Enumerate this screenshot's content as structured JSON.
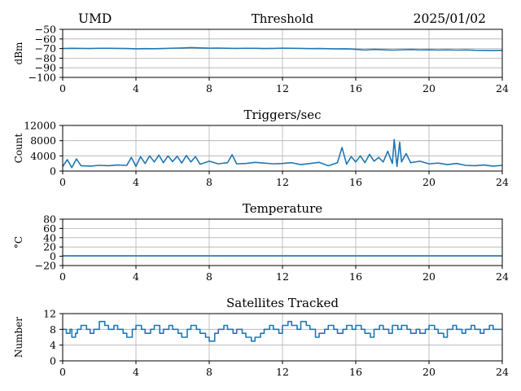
{
  "header": {
    "site": "UMD",
    "date": "2025/01/02"
  },
  "colors": {
    "line": "#1f77b4",
    "grid": "#b0b0b0",
    "axis": "#000000",
    "background": "#ffffff"
  },
  "chart_data": [
    {
      "type": "line",
      "title": "Threshold",
      "ylabel": "dBm",
      "xlabel": "",
      "xlim": [
        0,
        24
      ],
      "ylim": [
        -100,
        -50
      ],
      "x_ticks": [
        0,
        4,
        8,
        12,
        16,
        20,
        24
      ],
      "x_tick_labels": [
        "0",
        "4",
        "8",
        "12",
        "16",
        "20",
        "24"
      ],
      "y_ticks": [
        -50,
        -60,
        -70,
        -80,
        -90,
        -100
      ],
      "y_tick_labels": [
        "−50",
        "−60",
        "−70",
        "−80",
        "−90",
        "−100"
      ],
      "grid": true,
      "series": [
        {
          "x": [
            0,
            0.5,
            1,
            1.5,
            2,
            2.5,
            3,
            3.5,
            4,
            4.5,
            5,
            5.5,
            6,
            6.5,
            7,
            7.5,
            8,
            8.5,
            9,
            9.5,
            10,
            10.5,
            11,
            11.5,
            12,
            12.5,
            13,
            13.5,
            14,
            14.5,
            15,
            15.5,
            16,
            16.5,
            17,
            17.5,
            18,
            18.5,
            19,
            19.5,
            20,
            20.5,
            21,
            21.5,
            22,
            22.5,
            23,
            23.5,
            24
          ],
          "values": [
            -70,
            -69.8,
            -69.9,
            -70,
            -69.7,
            -69.8,
            -69.9,
            -70,
            -70.3,
            -70.1,
            -70.2,
            -70,
            -69.6,
            -69.4,
            -69,
            -69.3,
            -69.6,
            -69.5,
            -69.8,
            -69.9,
            -69.7,
            -69.8,
            -70,
            -69.9,
            -69.6,
            -69.8,
            -69.9,
            -70.1,
            -70,
            -70.2,
            -70.4,
            -70.3,
            -70.8,
            -71.5,
            -70.9,
            -71.2,
            -71.6,
            -71.3,
            -71,
            -71.4,
            -71.2,
            -71.5,
            -71.3,
            -71.6,
            -71.4,
            -71.8,
            -71.9,
            -72,
            -71.9
          ]
        }
      ]
    },
    {
      "type": "line",
      "title": "Triggers/sec",
      "ylabel": "Count",
      "xlabel": "",
      "xlim": [
        0,
        24
      ],
      "ylim": [
        0,
        12000
      ],
      "x_ticks": [
        0,
        4,
        8,
        12,
        16,
        20,
        24
      ],
      "x_tick_labels": [
        "0",
        "4",
        "8",
        "12",
        "16",
        "20",
        "24"
      ],
      "y_ticks": [
        0,
        4000,
        8000,
        12000
      ],
      "y_tick_labels": [
        "0",
        "4000",
        "8000",
        "12000"
      ],
      "grid": true,
      "series": [
        {
          "x": [
            0,
            0.25,
            0.5,
            0.75,
            1,
            1.5,
            2,
            2.5,
            3,
            3.5,
            3.75,
            4,
            4.25,
            4.5,
            4.75,
            5,
            5.25,
            5.5,
            5.75,
            6,
            6.25,
            6.5,
            6.75,
            7,
            7.25,
            7.5,
            8,
            8.5,
            9,
            9.25,
            9.5,
            10,
            10.5,
            11,
            11.5,
            12,
            12.5,
            13,
            13.5,
            14,
            14.5,
            15,
            15.25,
            15.5,
            15.75,
            16,
            16.25,
            16.5,
            16.75,
            17,
            17.25,
            17.5,
            17.75,
            18,
            18.1,
            18.25,
            18.4,
            18.5,
            18.75,
            19,
            19.5,
            20,
            20.5,
            21,
            21.5,
            22,
            22.5,
            23,
            23.5,
            24
          ],
          "values": [
            1200,
            3000,
            900,
            3200,
            1400,
            1300,
            1500,
            1400,
            1600,
            1500,
            3600,
            1200,
            3800,
            2000,
            4000,
            2400,
            4200,
            2200,
            4000,
            2500,
            3900,
            2100,
            4100,
            2400,
            3800,
            1800,
            2600,
            1900,
            2200,
            4300,
            1900,
            2000,
            2300,
            2100,
            1900,
            2000,
            2200,
            1700,
            2000,
            2300,
            1400,
            2200,
            6200,
            1800,
            3800,
            2400,
            4000,
            2200,
            4400,
            2600,
            3600,
            2400,
            5200,
            2000,
            8300,
            1200,
            7600,
            2400,
            4600,
            2200,
            2600,
            1900,
            2100,
            1700,
            2000,
            1500,
            1400,
            1600,
            1300,
            1500
          ]
        }
      ]
    },
    {
      "type": "line",
      "title": "Temperature",
      "ylabel": "°C",
      "xlabel": "",
      "xlim": [
        0,
        24
      ],
      "ylim": [
        -20,
        80
      ],
      "x_ticks": [
        0,
        4,
        8,
        12,
        16,
        20,
        24
      ],
      "x_tick_labels": [
        "0",
        "4",
        "8",
        "12",
        "16",
        "20",
        "24"
      ],
      "y_ticks": [
        -20,
        0,
        20,
        40,
        60,
        80
      ],
      "y_tick_labels": [
        "−20",
        "0",
        "20",
        "40",
        "60",
        "80"
      ],
      "grid": true,
      "series": [
        {
          "x": [
            0,
            24
          ],
          "values": [
            1,
            1
          ]
        }
      ]
    },
    {
      "type": "line",
      "title": "Satellites Tracked",
      "ylabel": "Number",
      "xlabel": "",
      "xlim": [
        0,
        24
      ],
      "ylim": [
        0,
        12
      ],
      "x_ticks": [
        0,
        4,
        8,
        12,
        16,
        20,
        24
      ],
      "x_tick_labels": [
        "0",
        "4",
        "8",
        "12",
        "16",
        "20",
        "24"
      ],
      "y_ticks": [
        0,
        4,
        8,
        12
      ],
      "y_tick_labels": [
        "0",
        "4",
        "8",
        "12"
      ],
      "grid": true,
      "step": true,
      "series": [
        {
          "x": [
            0,
            0.2,
            0.4,
            0.5,
            0.7,
            0.8,
            1,
            1.3,
            1.5,
            1.7,
            2,
            2.3,
            2.5,
            2.8,
            3,
            3.3,
            3.5,
            3.8,
            4,
            4.3,
            4.5,
            4.8,
            5,
            5.3,
            5.5,
            5.8,
            6,
            6.3,
            6.5,
            6.8,
            7,
            7.3,
            7.5,
            7.8,
            8,
            8.3,
            8.5,
            8.8,
            9,
            9.3,
            9.5,
            9.8,
            10,
            10.3,
            10.5,
            10.8,
            11,
            11.3,
            11.5,
            11.8,
            12,
            12.3,
            12.5,
            12.8,
            13,
            13.3,
            13.5,
            13.8,
            14,
            14.3,
            14.5,
            14.8,
            15,
            15.3,
            15.5,
            15.8,
            16,
            16.3,
            16.5,
            16.8,
            17,
            17.3,
            17.5,
            17.8,
            18,
            18.3,
            18.5,
            18.8,
            19,
            19.3,
            19.5,
            19.8,
            20,
            20.3,
            20.5,
            20.8,
            21,
            21.3,
            21.5,
            21.8,
            22,
            22.3,
            22.5,
            22.8,
            23,
            23.3,
            23.5,
            23.8,
            24
          ],
          "values": [
            8,
            7,
            8,
            6,
            7,
            8,
            9,
            8,
            7,
            8,
            10,
            9,
            8,
            9,
            8,
            7,
            6,
            8,
            9,
            8,
            7,
            8,
            9,
            7,
            8,
            9,
            8,
            7,
            6,
            8,
            9,
            8,
            7,
            6,
            5,
            7,
            8,
            9,
            8,
            7,
            8,
            7,
            6,
            5,
            6,
            7,
            8,
            9,
            8,
            7,
            9,
            10,
            9,
            8,
            10,
            9,
            8,
            6,
            7,
            8,
            9,
            8,
            7,
            8,
            9,
            8,
            9,
            8,
            7,
            6,
            8,
            9,
            8,
            7,
            9,
            8,
            9,
            8,
            7,
            8,
            7,
            8,
            9,
            8,
            7,
            6,
            8,
            9,
            8,
            7,
            8,
            9,
            8,
            7,
            8,
            9,
            8,
            8,
            8
          ]
        }
      ]
    }
  ]
}
